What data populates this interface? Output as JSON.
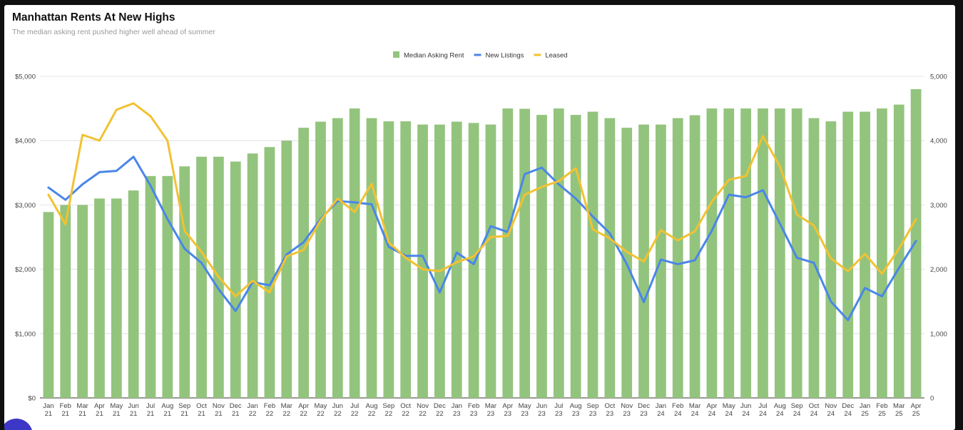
{
  "chart_data": {
    "type": "bar",
    "title": "Manhattan Rents At New Highs",
    "subtitle": "The median asking rent pushed higher well ahead of summer",
    "categories": [
      [
        "Jan",
        "21"
      ],
      [
        "Feb",
        "21"
      ],
      [
        "Mar",
        "21"
      ],
      [
        "Apr",
        "21"
      ],
      [
        "May",
        "21"
      ],
      [
        "Jun",
        "21"
      ],
      [
        "Jul",
        "21"
      ],
      [
        "Aug",
        "21"
      ],
      [
        "Sep",
        "21"
      ],
      [
        "Oct",
        "21"
      ],
      [
        "Nov",
        "21"
      ],
      [
        "Dec",
        "21"
      ],
      [
        "Jan",
        "22"
      ],
      [
        "Feb",
        "22"
      ],
      [
        "Mar",
        "22"
      ],
      [
        "Apr",
        "22"
      ],
      [
        "May",
        "22"
      ],
      [
        "Jun",
        "22"
      ],
      [
        "Jul",
        "22"
      ],
      [
        "Aug",
        "22"
      ],
      [
        "Sep",
        "22"
      ],
      [
        "Oct",
        "22"
      ],
      [
        "Nov",
        "22"
      ],
      [
        "Dec",
        "22"
      ],
      [
        "Jan",
        "23"
      ],
      [
        "Feb",
        "23"
      ],
      [
        "Mar",
        "23"
      ],
      [
        "Apr",
        "23"
      ],
      [
        "May",
        "23"
      ],
      [
        "Jun",
        "23"
      ],
      [
        "Jul",
        "23"
      ],
      [
        "Aug",
        "23"
      ],
      [
        "Sep",
        "23"
      ],
      [
        "Oct",
        "23"
      ],
      [
        "Nov",
        "23"
      ],
      [
        "Dec",
        "23"
      ],
      [
        "Jan",
        "24"
      ],
      [
        "Feb",
        "24"
      ],
      [
        "Mar",
        "24"
      ],
      [
        "Apr",
        "24"
      ],
      [
        "May",
        "24"
      ],
      [
        "Jun",
        "24"
      ],
      [
        "Jul",
        "24"
      ],
      [
        "Aug",
        "24"
      ],
      [
        "Sep",
        "24"
      ],
      [
        "Oct",
        "24"
      ],
      [
        "Nov",
        "24"
      ],
      [
        "Dec",
        "24"
      ],
      [
        "Jan",
        "25"
      ],
      [
        "Feb",
        "25"
      ],
      [
        "Mar",
        "25"
      ],
      [
        "Apr",
        "25"
      ]
    ],
    "series": [
      {
        "name": "Median Asking Rent",
        "kind": "bar",
        "axis": "left",
        "color": "#93c47d",
        "values": [
          2890,
          3000,
          3000,
          3100,
          3100,
          3225,
          3450,
          3450,
          3600,
          3750,
          3750,
          3675,
          3800,
          3900,
          4000,
          4200,
          4295,
          4350,
          4500,
          4350,
          4300,
          4300,
          4250,
          4250,
          4295,
          4275,
          4250,
          4500,
          4495,
          4400,
          4500,
          4400,
          4450,
          4350,
          4200,
          4250,
          4250,
          4350,
          4395,
          4500,
          4500,
          4500,
          4500,
          4500,
          4500,
          4350,
          4300,
          4450,
          4450,
          4500,
          4560,
          4800
        ]
      },
      {
        "name": "New Listings",
        "kind": "line",
        "axis": "right",
        "color": "#4a86e8",
        "values": [
          3270,
          3080,
          3320,
          3510,
          3530,
          3750,
          3300,
          2780,
          2320,
          2100,
          1690,
          1350,
          1800,
          1750,
          2230,
          2420,
          2780,
          3060,
          3040,
          3010,
          2350,
          2210,
          2210,
          1640,
          2260,
          2080,
          2670,
          2580,
          3480,
          3580,
          3320,
          3100,
          2820,
          2560,
          2080,
          1490,
          2150,
          2080,
          2140,
          2600,
          3160,
          3120,
          3230,
          2710,
          2180,
          2100,
          1500,
          1210,
          1710,
          1580,
          2020,
          2440
        ]
      },
      {
        "name": "Leased",
        "kind": "line",
        "axis": "right",
        "color": "#f1c232",
        "values": [
          3160,
          2700,
          4090,
          4000,
          4480,
          4580,
          4380,
          4000,
          2600,
          2270,
          1880,
          1580,
          1820,
          1640,
          2200,
          2300,
          2760,
          3100,
          2890,
          3330,
          2420,
          2180,
          2000,
          1970,
          2110,
          2200,
          2500,
          2520,
          3160,
          3280,
          3370,
          3570,
          2620,
          2480,
          2270,
          2120,
          2610,
          2450,
          2590,
          3050,
          3390,
          3450,
          4070,
          3600,
          2850,
          2680,
          2170,
          1970,
          2240,
          1930,
          2320,
          2780
        ]
      }
    ],
    "left_axis": {
      "min": 0,
      "max": 5000,
      "ticks": [
        "$0",
        "$1,000",
        "$2,000",
        "$3,000",
        "$4,000",
        "$5,000"
      ]
    },
    "right_axis": {
      "min": 0,
      "max": 5000,
      "ticks": [
        "0",
        "1,000",
        "2,000",
        "3,000",
        "4,000",
        "5,000"
      ]
    },
    "grid": true,
    "legend_position": "top-center"
  }
}
